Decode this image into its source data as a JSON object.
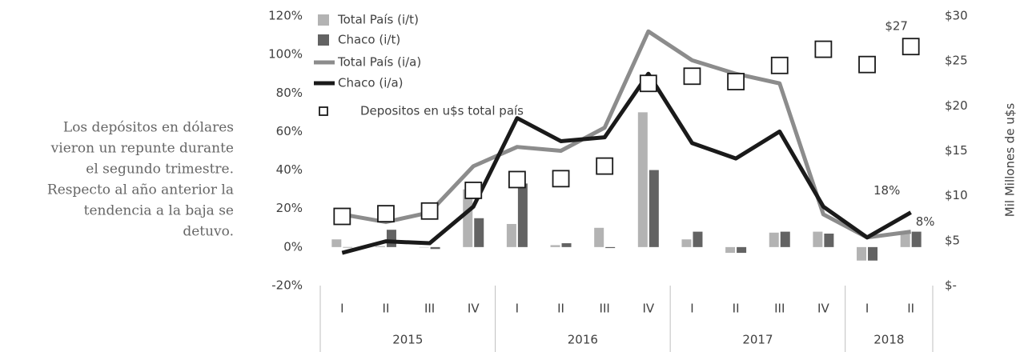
{
  "side_text": [
    "Los depósitos en dólares",
    "vieron un repunte durante",
    "el segundo trimestre.",
    "Respecto al año anterior la",
    "tendencia a la baja se",
    "detuvo."
  ],
  "chart_data": {
    "type": "bar",
    "groups": [
      {
        "name": "2015",
        "categories": [
          "I",
          "II",
          "III",
          "IV"
        ]
      },
      {
        "name": "2016",
        "categories": [
          "I",
          "II",
          "III",
          "IV"
        ]
      },
      {
        "name": "2017",
        "categories": [
          "I",
          "II",
          "III",
          "IV"
        ]
      },
      {
        "name": "2018",
        "categories": [
          "I",
          "II"
        ]
      }
    ],
    "series": [
      {
        "name": "Total País (i/t)",
        "type": "bar",
        "color": "#b3b3b3",
        "values": [
          4,
          0.5,
          0,
          30,
          12,
          1,
          10,
          70,
          4,
          -3,
          7.5,
          8,
          -7,
          8
        ]
      },
      {
        "name": "Chaco (i/t)",
        "type": "bar",
        "color": "#636363",
        "values": [
          0,
          9,
          -1,
          15,
          33,
          2,
          -0.5,
          40,
          8,
          -3,
          8,
          7,
          -7,
          8
        ]
      },
      {
        "name": "Total País (i/a)",
        "type": "line",
        "color": "#8c8c8c",
        "values": [
          17,
          13,
          18,
          42,
          52,
          50,
          62,
          112,
          97,
          90,
          85,
          17,
          5,
          8
        ],
        "value_labels": [
          null,
          null,
          null,
          null,
          null,
          null,
          null,
          null,
          null,
          null,
          null,
          null,
          null,
          "8%"
        ]
      },
      {
        "name": "Chaco (i/a)",
        "type": "line",
        "color": "#1a1a1a",
        "values": [
          -3,
          3,
          2,
          21,
          67,
          55,
          57,
          90,
          54,
          46,
          60,
          21,
          5,
          18
        ],
        "value_labels": [
          null,
          null,
          null,
          null,
          null,
          null,
          null,
          null,
          null,
          null,
          null,
          null,
          null,
          "18%"
        ]
      },
      {
        "name": "Depositos en u$s total país",
        "type": "scatter",
        "axis": "y2",
        "color": "#1a1a1a",
        "values": [
          7.7,
          8.0,
          8.3,
          10.6,
          11.8,
          11.9,
          13.3,
          22.5,
          23.3,
          22.7,
          24.5,
          26.3,
          24.6,
          26.6
        ],
        "value_labels": [
          null,
          null,
          null,
          null,
          null,
          null,
          null,
          null,
          null,
          null,
          null,
          null,
          null,
          "$27"
        ]
      }
    ],
    "ylim": [
      -20,
      120
    ],
    "yticks": [
      {
        "value": -20,
        "label": "-20%"
      },
      {
        "value": 0,
        "label": "0%"
      },
      {
        "value": 20,
        "label": "20%"
      },
      {
        "value": 40,
        "label": "40%"
      },
      {
        "value": 60,
        "label": "60%"
      },
      {
        "value": 80,
        "label": "80%"
      },
      {
        "value": 100,
        "label": "100%"
      },
      {
        "value": 120,
        "label": "120%"
      }
    ],
    "y2lim": [
      0,
      30
    ],
    "y2ticks": [
      {
        "value": 0,
        "label": "$-"
      },
      {
        "value": 5,
        "label": "$5"
      },
      {
        "value": 10,
        "label": "$10"
      },
      {
        "value": 15,
        "label": "$15"
      },
      {
        "value": 20,
        "label": "$20"
      },
      {
        "value": 25,
        "label": "$25"
      },
      {
        "value": 30,
        "label": "$30"
      }
    ],
    "y2_label": "Mil Millones de u$s",
    "grid": false,
    "legend": "top-left"
  }
}
